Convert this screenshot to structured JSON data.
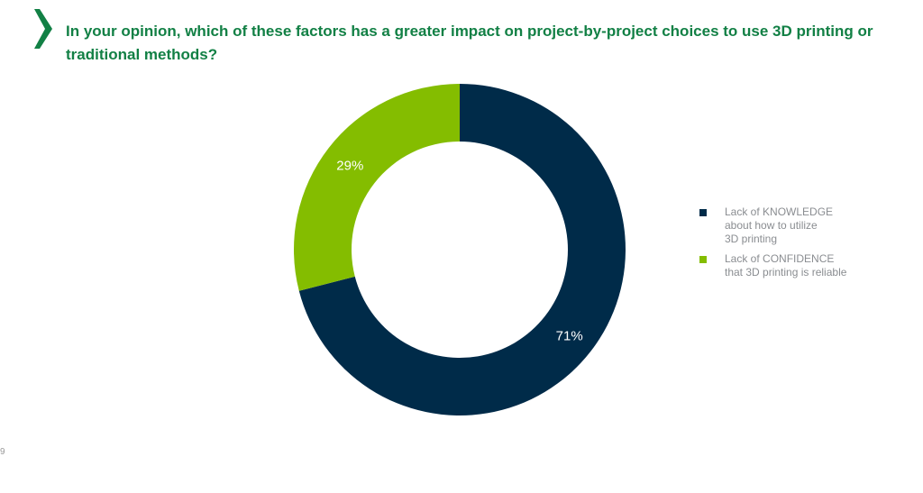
{
  "page": {
    "title": "In your opinion, which of these factors has a greater impact on project-by-project choices to use 3D printing or traditional methods?",
    "page_number": "9",
    "accent_color": "#128045"
  },
  "chart_data": {
    "type": "pie",
    "donut": true,
    "legend_position": "right",
    "series": [
      {
        "name": "Lack of KNOWLEDGE\nabout how to utilize\n3D printing",
        "value": 71,
        "label": "71%",
        "color": "#002b49"
      },
      {
        "name": "Lack of CONFIDENCE\nthat 3D printing is reliable",
        "value": 29,
        "label": "29%",
        "color": "#84bd00"
      }
    ]
  }
}
